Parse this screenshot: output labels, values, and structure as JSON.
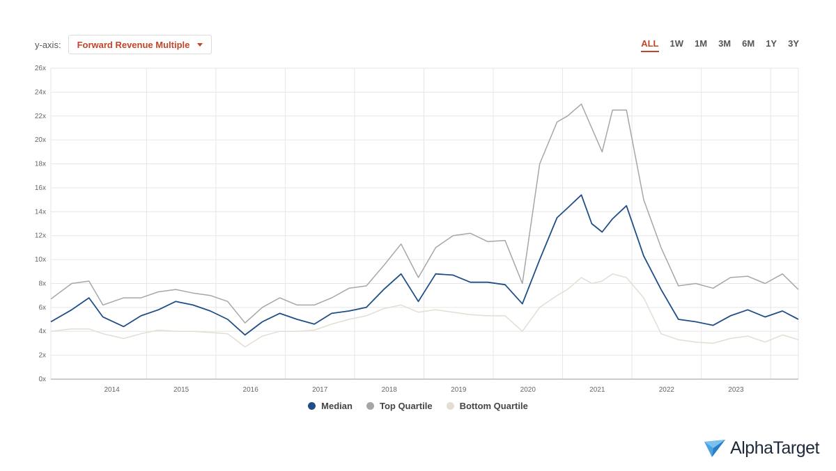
{
  "controls": {
    "yaxis_label": "y-axis:",
    "yaxis_selected": "Forward Revenue Multiple",
    "ranges": [
      "ALL",
      "1W",
      "1M",
      "3M",
      "6M",
      "1Y",
      "3Y"
    ],
    "active_range": "ALL"
  },
  "brand": {
    "name": "AlphaTarget"
  },
  "colors": {
    "median": "#1f4e87",
    "top": "#a6a6a6",
    "bottom": "#e4ddd3",
    "accent": "#c0452b"
  },
  "chart_data": {
    "type": "line",
    "title": "",
    "xlabel": "",
    "ylabel": "",
    "x_range": [
      2013.2,
      2023.98
    ],
    "ylim": [
      0,
      26
    ],
    "y_ticks": [
      0,
      2,
      4,
      6,
      8,
      10,
      12,
      14,
      16,
      18,
      20,
      22,
      24,
      26
    ],
    "y_tick_labels": [
      "0x",
      "2x",
      "4x",
      "6x",
      "8x",
      "10x",
      "12x",
      "14x",
      "16x",
      "18x",
      "20x",
      "22x",
      "24x",
      "26x"
    ],
    "x_tick_labels": [
      {
        "x": 2014.08,
        "label": "2014"
      },
      {
        "x": 2015.08,
        "label": "2015"
      },
      {
        "x": 2016.08,
        "label": "2016"
      },
      {
        "x": 2017.08,
        "label": "2017"
      },
      {
        "x": 2018.08,
        "label": "2018"
      },
      {
        "x": 2019.08,
        "label": "2019"
      },
      {
        "x": 2020.08,
        "label": "2020"
      },
      {
        "x": 2021.08,
        "label": "2021"
      },
      {
        "x": 2022.08,
        "label": "2022"
      },
      {
        "x": 2023.08,
        "label": "2023"
      }
    ],
    "grid": true,
    "legend_position": "bottom-center",
    "x": [
      2013.2,
      2013.5,
      2013.75,
      2013.95,
      2014.25,
      2014.5,
      2014.75,
      2015.0,
      2015.25,
      2015.5,
      2015.75,
      2016.0,
      2016.25,
      2016.5,
      2016.75,
      2017.0,
      2017.25,
      2017.5,
      2017.75,
      2018.0,
      2018.25,
      2018.5,
      2018.75,
      2019.0,
      2019.25,
      2019.5,
      2019.75,
      2020.0,
      2020.25,
      2020.5,
      2020.65,
      2020.85,
      2021.0,
      2021.15,
      2021.3,
      2021.5,
      2021.75,
      2022.0,
      2022.25,
      2022.5,
      2022.75,
      2023.0,
      2023.25,
      2023.5,
      2023.75,
      2023.98
    ],
    "series": [
      {
        "name": "Median",
        "color": "#1f4e87",
        "values": [
          4.8,
          5.8,
          6.8,
          5.2,
          4.4,
          5.3,
          5.8,
          6.5,
          6.2,
          5.7,
          5.0,
          3.7,
          4.8,
          5.5,
          5.0,
          4.6,
          5.5,
          5.7,
          6.0,
          7.5,
          8.8,
          6.5,
          8.8,
          8.7,
          8.1,
          8.1,
          7.9,
          6.3,
          10.0,
          13.5,
          14.3,
          15.4,
          13.0,
          12.3,
          13.4,
          14.5,
          10.3,
          7.5,
          5.0,
          4.8,
          4.5,
          5.3,
          5.8,
          5.2,
          5.7,
          5.0
        ]
      },
      {
        "name": "Top Quartile",
        "color": "#a6a6a6",
        "values": [
          6.7,
          8.0,
          8.2,
          6.2,
          6.8,
          6.8,
          7.3,
          7.5,
          7.2,
          7.0,
          6.5,
          4.7,
          6.0,
          6.8,
          6.2,
          6.2,
          6.8,
          7.6,
          7.8,
          9.5,
          11.3,
          8.5,
          11.0,
          12.0,
          12.2,
          11.5,
          11.6,
          8.0,
          18.0,
          21.5,
          22.0,
          23.0,
          21.0,
          19.0,
          22.5,
          22.5,
          15.0,
          11.0,
          7.8,
          8.0,
          7.6,
          8.5,
          8.6,
          8.0,
          8.8,
          7.5
        ]
      },
      {
        "name": "Bottom Quartile",
        "color": "#e4ddd3",
        "values": [
          4.0,
          4.2,
          4.2,
          3.8,
          3.4,
          3.8,
          4.1,
          4.0,
          4.0,
          3.9,
          3.8,
          2.7,
          3.6,
          4.0,
          4.0,
          4.1,
          4.6,
          5.0,
          5.3,
          5.9,
          6.2,
          5.6,
          5.8,
          5.6,
          5.4,
          5.3,
          5.3,
          4.0,
          6.0,
          7.0,
          7.5,
          8.5,
          8.0,
          8.2,
          8.8,
          8.5,
          6.8,
          3.8,
          3.3,
          3.1,
          3.0,
          3.4,
          3.6,
          3.1,
          3.7,
          3.3
        ]
      }
    ]
  }
}
